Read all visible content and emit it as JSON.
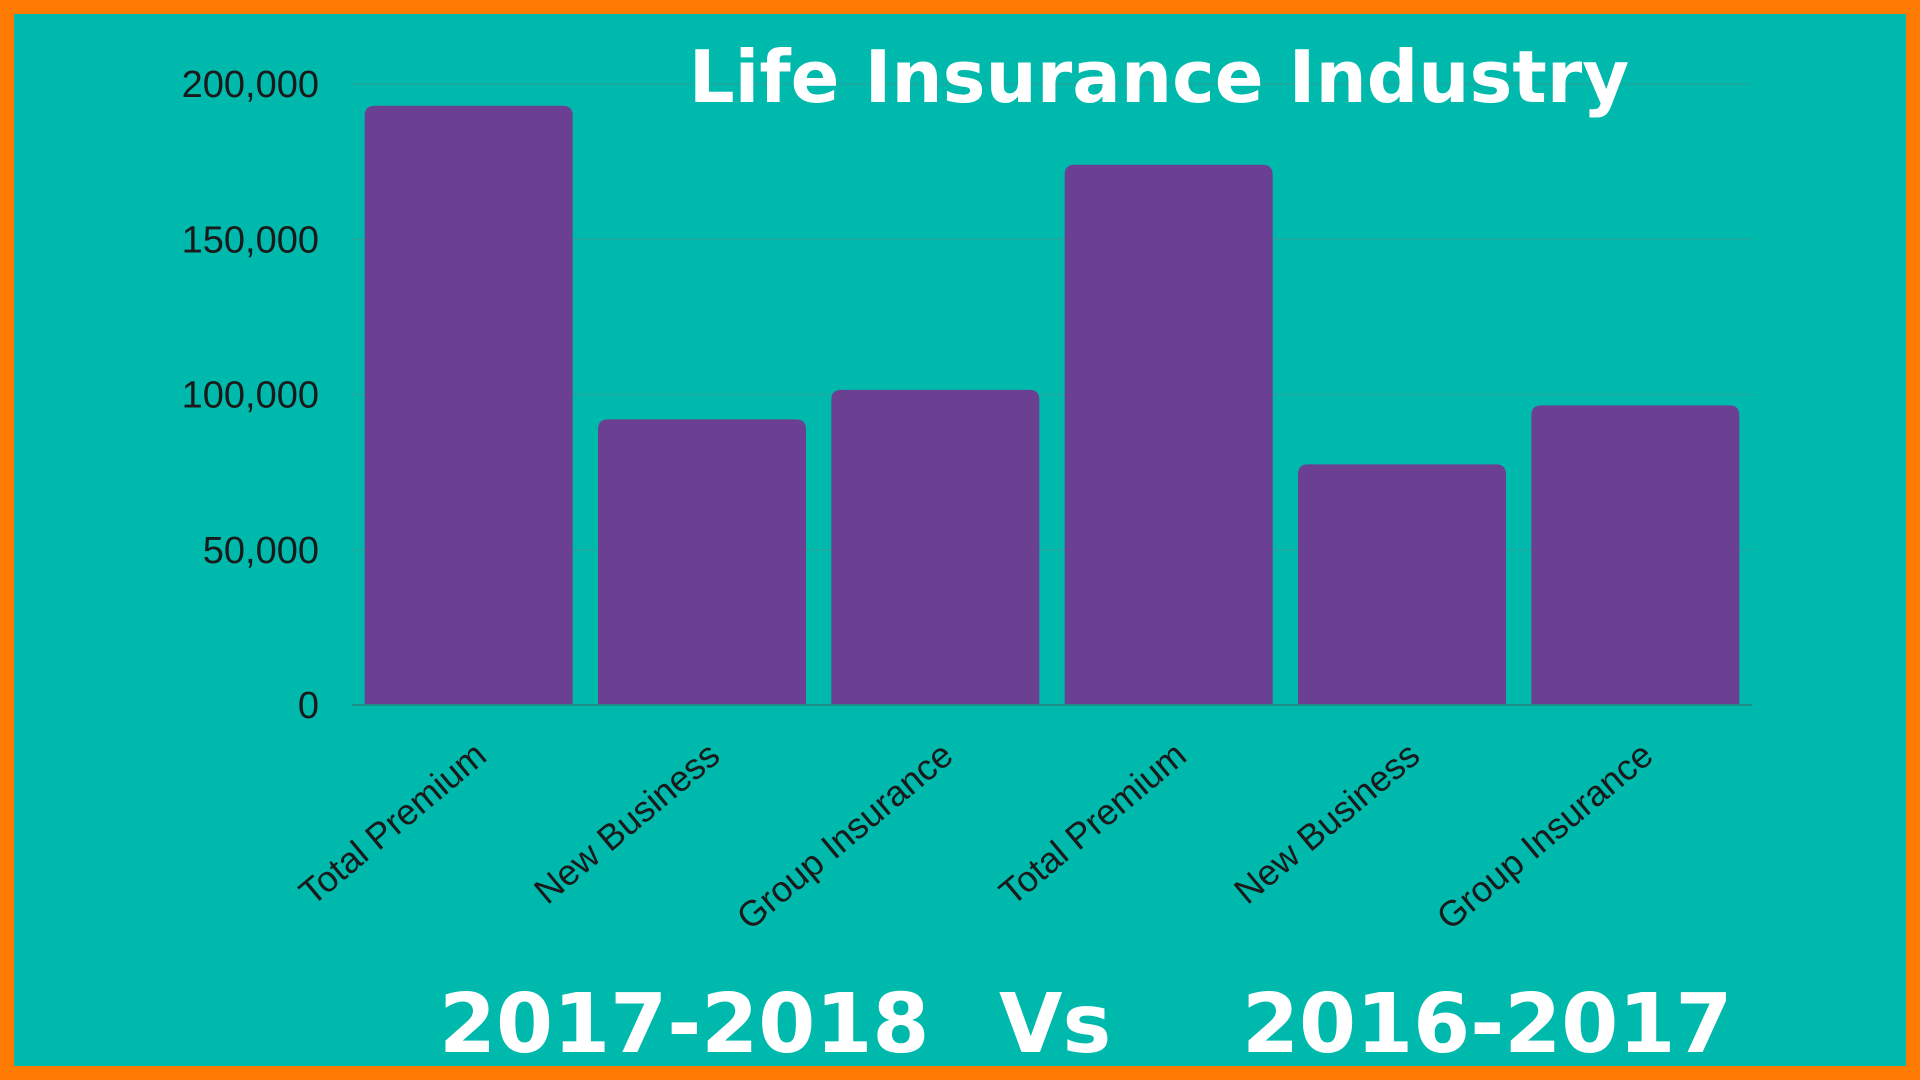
{
  "chart_data": {
    "type": "bar",
    "title": "Life Insurance Industry",
    "categories": [
      "Total Premium",
      "New Business",
      "Group Insurance",
      "Total Premium",
      "New Business",
      "Group Insurance"
    ],
    "values": [
      193000,
      92000,
      101500,
      174000,
      77500,
      96500
    ],
    "ylim": [
      0,
      200000
    ],
    "yticks": [
      0,
      50000,
      100000,
      150000,
      200000
    ],
    "ytick_labels": [
      "0",
      "50,000",
      "100,000",
      "150,000",
      "200,000"
    ],
    "xlabel": "",
    "ylabel": "",
    "grid": true,
    "legend": "none",
    "bar_color": "#6b3f91",
    "background_color": "#00b9ad",
    "border_color": "#ff7a00"
  },
  "footer": {
    "left_period": "2017-2018",
    "versus": "Vs",
    "right_period": "2016-2017"
  }
}
